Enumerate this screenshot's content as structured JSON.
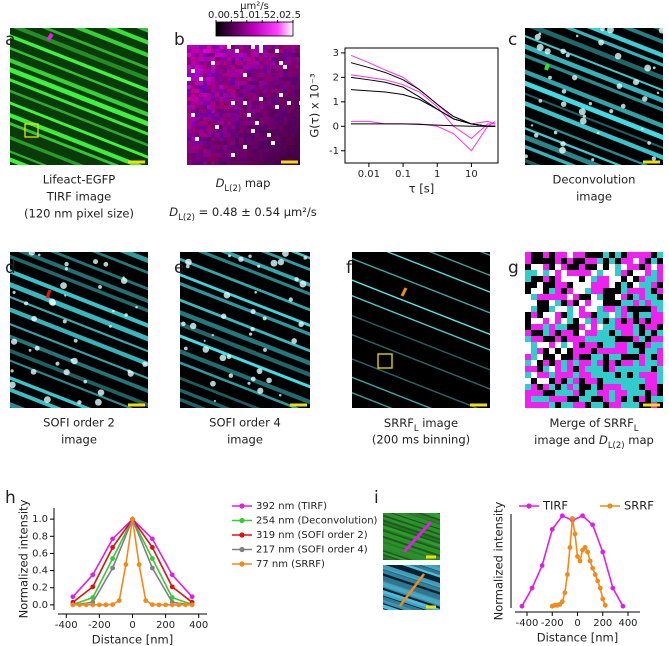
{
  "panels": {
    "a": {
      "label": "a",
      "caption": [
        "Lifeact-EGFP",
        "TIRF image",
        "(120 nm pixel size)"
      ]
    },
    "b": {
      "label": "b",
      "caption": [
        [
          {
            "text": "D",
            "style": "italic"
          },
          {
            "text": "L(2)",
            "style": "sub"
          },
          {
            "text": " map"
          }
        ],
        [
          {
            "text": "D",
            "style": "italic"
          },
          {
            "text": "L(2)",
            "style": "sub"
          },
          {
            "text": " = 0.48 ± 0.54 µm²/s"
          }
        ]
      ],
      "colorbar": {
        "label": "µm²/s",
        "lim": [
          0,
          2.5
        ],
        "ticks": [
          {
            "value": 0,
            "label": "0.0"
          },
          0.5,
          {
            "value": 1,
            "label": "1.0"
          },
          1.5,
          {
            "value": 2,
            "label": "2.0"
          },
          2.5
        ]
      }
    },
    "c": {
      "label": "c",
      "caption": [
        "Deconvolution",
        "image"
      ]
    },
    "d": {
      "label": "d",
      "caption": [
        "SOFI order 2",
        "image"
      ]
    },
    "e": {
      "label": "e",
      "caption": [
        "SOFI order 4",
        "image"
      ]
    },
    "f": {
      "label": "f",
      "caption": [
        [
          {
            "text": "SRRF"
          },
          {
            "text": "L",
            "style": "sub"
          },
          {
            "text": " image"
          }
        ],
        "(200 ms binning)"
      ]
    },
    "g": {
      "label": "g",
      "caption": [
        [
          {
            "text": "Merge of SRRF"
          },
          {
            "text": "L",
            "style": "sub"
          }
        ],
        [
          {
            "text": "image and "
          },
          {
            "text": "D",
            "style": "italic"
          },
          {
            "text": "L(2)",
            "style": "sub"
          },
          {
            "text": " map"
          }
        ]
      ]
    },
    "h": {
      "label": "h"
    },
    "i": {
      "label": "i"
    }
  },
  "chart_data": [
    {
      "type": "line",
      "xlabel": "τ [s]",
      "ylabel": "G(τ) x 10⁻³",
      "log_x": true,
      "frame": true,
      "x": [
        0.003,
        0.01,
        0.03,
        0.1,
        0.3,
        1,
        3,
        10,
        30,
        50
      ],
      "xlim": [
        0.002,
        60
      ],
      "ylim": [
        -1.5,
        3.2
      ],
      "xticks": [
        0.01,
        0.1,
        1,
        10
      ],
      "yticks": [
        -1,
        0,
        1,
        2,
        3
      ],
      "series": [
        {
          "color": "#ff33ee",
          "values": [
            2.9,
            2.6,
            2.3,
            2.0,
            1.5,
            0.9,
            0.3,
            0.1,
            0.2,
            0.1
          ]
        },
        {
          "color": "#ff33ee",
          "values": [
            2.1,
            2.0,
            1.9,
            1.7,
            1.4,
            0.8,
            0.0,
            -0.5,
            0.1,
            0.1
          ]
        },
        {
          "color": "#ff33ee",
          "values": [
            0.2,
            0.2,
            0.1,
            0.1,
            0.1,
            0.0,
            -0.3,
            -1.0,
            0.0,
            0.2
          ]
        },
        {
          "color": "#000000",
          "values": [
            2.6,
            2.4,
            2.2,
            1.9,
            1.5,
            0.9,
            0.4,
            0.1,
            0.0,
            0.0
          ]
        },
        {
          "color": "#000000",
          "values": [
            2.0,
            1.9,
            1.8,
            1.6,
            1.2,
            0.7,
            0.3,
            0.1,
            0.0,
            0.0
          ]
        },
        {
          "color": "#000000",
          "values": [
            1.5,
            1.45,
            1.4,
            1.3,
            1.1,
            0.7,
            0.3,
            0.1,
            0.0,
            0.0
          ]
        },
        {
          "color": "#000000",
          "values": [
            0.1,
            0.1,
            0.1,
            0.1,
            0.08,
            0.05,
            0.02,
            0.0,
            0.0,
            0.0
          ]
        }
      ]
    },
    {
      "type": "line",
      "xlabel": "Distance [nm]",
      "ylabel": "Normalized intensity",
      "markers": true,
      "xlim": [
        -450,
        450
      ],
      "ylim": [
        -0.06,
        1.13
      ],
      "xticks": [
        -400,
        -200,
        0,
        200,
        400
      ],
      "yticks": [
        {
          "value": 0,
          "label": "0.0"
        },
        0.2,
        0.4,
        0.6,
        0.8,
        {
          "value": 1,
          "label": "1.0"
        }
      ],
      "series": [
        {
          "name": "392 nm (TIRF)",
          "color": "#e020e0",
          "x": [
            -360,
            -240,
            -120,
            0,
            120,
            240,
            360
          ],
          "values": [
            0.095,
            0.35,
            0.77,
            1.0,
            0.77,
            0.35,
            0.095
          ]
        },
        {
          "name": "254 nm (Deconvolution)",
          "color": "#33cc33",
          "x": [
            -360,
            -240,
            -120,
            0,
            120,
            240,
            360
          ],
          "values": [
            0.004,
            0.085,
            0.54,
            1.0,
            0.54,
            0.085,
            0.004
          ]
        },
        {
          "name": "319 nm (SOFI order 2)",
          "color": "#e01010",
          "x": [
            -360,
            -240,
            -120,
            0,
            120,
            240,
            360
          ],
          "values": [
            0.03,
            0.21,
            0.67,
            1.0,
            0.67,
            0.21,
            0.03
          ]
        },
        {
          "name": "217 nm (SOFI order 4)",
          "color": "#808080",
          "x": [
            -360,
            -240,
            -120,
            0,
            120,
            240,
            360
          ],
          "values": [
            0.0,
            0.03,
            0.43,
            1.0,
            0.43,
            0.03,
            0.0
          ]
        },
        {
          "name": " 77 nm (SRRF)",
          "color": "#f08a1a",
          "x": [
            -360,
            -320,
            -280,
            -240,
            -200,
            -160,
            -120,
            -80,
            -40,
            0,
            40,
            80,
            120,
            160,
            200,
            240,
            280,
            320,
            360
          ],
          "values": [
            0,
            0,
            0,
            0,
            0,
            0,
            0.003,
            0.05,
            0.47,
            1.0,
            0.47,
            0.05,
            0.003,
            0,
            0,
            0,
            0,
            0,
            0
          ]
        }
      ]
    },
    {
      "type": "line",
      "xlabel": "Distance [nm]",
      "ylabel": "Normalized intensity",
      "markers": true,
      "legend": "top",
      "xlim": [
        -495,
        495
      ],
      "ylim": [
        -0.02,
        1.02
      ],
      "xticks": [
        -400,
        -200,
        0,
        200,
        400
      ],
      "series": [
        {
          "name": "TIRF",
          "color": "#e020e0",
          "x": [
            -440,
            -360,
            -280,
            -200,
            -120,
            -40,
            40,
            120,
            200,
            280,
            360
          ],
          "values": [
            0.0,
            0.2,
            0.45,
            0.85,
            1.0,
            0.95,
            1.0,
            0.9,
            0.6,
            0.2,
            0.0
          ]
        },
        {
          "name": "SRRF",
          "color": "#f08a1a",
          "x": [
            -200,
            -180,
            -160,
            -140,
            -120,
            -100,
            -80,
            -60,
            -40,
            -20,
            0,
            20,
            40,
            60,
            80,
            100,
            120,
            140,
            160,
            180,
            200,
            220
          ],
          "values": [
            0,
            0.01,
            0.01,
            0.02,
            0.05,
            0.15,
            0.35,
            0.65,
            0.97,
            0.8,
            0.55,
            0.5,
            0.62,
            0.65,
            0.6,
            0.5,
            0.42,
            0.35,
            0.28,
            0.2,
            0.08,
            0.01
          ]
        }
      ]
    }
  ]
}
